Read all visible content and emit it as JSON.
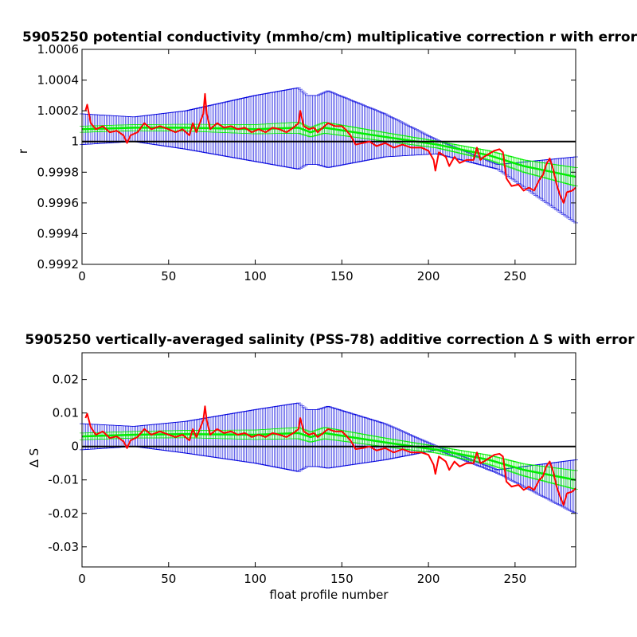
{
  "chart_data": [
    {
      "type": "line",
      "title": "5905250 potential conductivity (mmho/cm) multiplicative correction r with error",
      "xlabel": "",
      "ylabel": "r",
      "xlim": [
        0,
        285
      ],
      "ylim": [
        0.9992,
        1.0006
      ],
      "xticks": [
        "0",
        "50",
        "100",
        "150",
        "200",
        "250"
      ],
      "yticks": [
        "0.9992",
        "0.9994",
        "0.9996",
        "0.9998",
        "1",
        "1.0002",
        "1.0004",
        "1.0006"
      ],
      "ytick_values": [
        0.9992,
        0.9994,
        0.9996,
        0.9998,
        1.0,
        1.0002,
        1.0004,
        1.0006
      ],
      "reference_line": 1.0,
      "series": [
        {
          "role": "fit",
          "color": "#00ee00",
          "x": [
            0,
            30,
            60,
            100,
            125,
            132,
            140,
            175,
            205,
            235,
            255,
            285
          ],
          "y": [
            1.00008,
            1.00009,
            1.00009,
            1.00008,
            1.00009,
            1.00006,
            1.00009,
            1.00003,
            0.99998,
            0.99991,
            0.99984,
            0.99977
          ]
        },
        {
          "role": "fit-error",
          "color": "#00ee00",
          "x": [
            0,
            30,
            60,
            100,
            125,
            132,
            140,
            175,
            205,
            235,
            255,
            285
          ],
          "err": [
            2e-05,
            2e-05,
            2.2e-05,
            3e-05,
            3.6e-05,
            3e-05,
            3.6e-05,
            2.8e-05,
            2.2e-05,
            3e-05,
            4e-05,
            6e-05
          ]
        },
        {
          "role": "error",
          "color": "#0000dd",
          "x": [
            0,
            30,
            60,
            100,
            125,
            130,
            136,
            142,
            175,
            205,
            240,
            285
          ],
          "upper": [
            1.00018,
            1.00016,
            1.0002,
            1.0003,
            1.00035,
            1.0003,
            1.0003,
            1.00033,
            1.00018,
            1.00001,
            0.99985,
            0.9999
          ],
          "lower": [
            0.99998,
            1.0,
            0.99995,
            0.99987,
            0.99982,
            0.99985,
            0.99985,
            0.99983,
            0.9999,
            0.99992,
            0.99982,
            0.99947
          ]
        },
        {
          "role": "data",
          "color": "#ff0000",
          "x": [
            2,
            3,
            5,
            8,
            12,
            16,
            20,
            24,
            26,
            28,
            32,
            36,
            40,
            45,
            50,
            54,
            58,
            62,
            64,
            66,
            68,
            70,
            71,
            72,
            74,
            78,
            82,
            86,
            90,
            94,
            98,
            102,
            106,
            110,
            114,
            118,
            122,
            125,
            126,
            128,
            131,
            134,
            136,
            138,
            142,
            146,
            150,
            152,
            155,
            158,
            162,
            166,
            170,
            175,
            180,
            185,
            190,
            196,
            200,
            203,
            204,
            206,
            210,
            212,
            215,
            218,
            222,
            226,
            228,
            230,
            232,
            235,
            238,
            241,
            243,
            245,
            248,
            252,
            255,
            258,
            261,
            264,
            266,
            268,
            270,
            272,
            274,
            276,
            278,
            280,
            283,
            285
          ],
          "y": [
            1.0002,
            1.00024,
            1.00012,
            1.00008,
            1.0001,
            1.00006,
            1.00007,
            1.00004,
            0.99999,
            1.00004,
            1.00006,
            1.00012,
            1.00008,
            1.0001,
            1.00008,
            1.00006,
            1.00008,
            1.00004,
            1.00012,
            1.00006,
            1.00012,
            1.00018,
            1.00031,
            1.00018,
            1.00008,
            1.00012,
            1.00009,
            1.0001,
            1.00008,
            1.00009,
            1.00006,
            1.00008,
            1.00006,
            1.00009,
            1.00008,
            1.00006,
            1.00009,
            1.00012,
            1.0002,
            1.0001,
            1.00008,
            1.00009,
            1.00006,
            1.00008,
            1.00012,
            1.0001,
            1.0001,
            1.00008,
            1.00004,
            0.99998,
            0.99999,
            1.0,
            0.99997,
            0.99999,
            0.99996,
            0.99998,
            0.99996,
            0.99996,
            0.99994,
            0.99988,
            0.99981,
            0.99993,
            0.9999,
            0.99984,
            0.9999,
            0.99986,
            0.99988,
            0.99988,
            0.99996,
            0.99988,
            0.9999,
            0.99992,
            0.99994,
            0.99995,
            0.99993,
            0.99976,
            0.99971,
            0.99972,
            0.99968,
            0.9997,
            0.99968,
            0.99975,
            0.99978,
            0.99985,
            0.99989,
            0.99982,
            0.99972,
            0.99965,
            0.9996,
            0.99967,
            0.99968,
            0.9997
          ]
        }
      ]
    },
    {
      "type": "line",
      "title": "5905250 vertically-averaged salinity (PSS-78) additive correction ∆ S with error",
      "xlabel": "float profile number",
      "ylabel": "∆ S",
      "xlim": [
        0,
        285
      ],
      "ylim": [
        -0.036,
        0.028
      ],
      "xticks": [
        "0",
        "50",
        "100",
        "150",
        "200",
        "250"
      ],
      "yticks": [
        "-0.03",
        "-0.02",
        "-0.01",
        "0",
        "0.01",
        "0.02"
      ],
      "ytick_values": [
        -0.03,
        -0.02,
        -0.01,
        0.0,
        0.01,
        0.02
      ],
      "reference_line": 0.0,
      "series": [
        {
          "role": "fit",
          "color": "#00ee00",
          "x": [
            0,
            30,
            60,
            100,
            125,
            132,
            140,
            175,
            205,
            235,
            255,
            285
          ],
          "y": [
            0.003,
            0.0035,
            0.0037,
            0.0035,
            0.004,
            0.0028,
            0.004,
            0.0012,
            -0.001,
            -0.004,
            -0.007,
            -0.01
          ]
        },
        {
          "role": "fit-error",
          "color": "#00ee00",
          "x": [
            0,
            30,
            60,
            100,
            125,
            132,
            140,
            175,
            205,
            235,
            255,
            285
          ],
          "err": [
            0.001,
            0.001,
            0.0011,
            0.0014,
            0.0017,
            0.0015,
            0.0017,
            0.0013,
            0.001,
            0.0014,
            0.0018,
            0.0028
          ]
        },
        {
          "role": "error",
          "color": "#0000dd",
          "x": [
            0,
            30,
            60,
            100,
            125,
            130,
            136,
            142,
            175,
            205,
            240,
            285
          ],
          "upper": [
            0.0068,
            0.006,
            0.0075,
            0.011,
            0.013,
            0.011,
            0.011,
            0.012,
            0.0068,
            0.0,
            -0.007,
            -0.004
          ],
          "lower": [
            -0.001,
            0.0,
            -0.002,
            -0.005,
            -0.0075,
            -0.006,
            -0.006,
            -0.0065,
            -0.004,
            -0.001,
            -0.008,
            -0.02
          ]
        },
        {
          "role": "data",
          "color": "#ff0000",
          "x": [
            2,
            3,
            5,
            8,
            12,
            16,
            20,
            24,
            26,
            28,
            32,
            36,
            40,
            45,
            50,
            54,
            58,
            62,
            64,
            66,
            68,
            70,
            71,
            72,
            74,
            78,
            82,
            86,
            90,
            94,
            98,
            102,
            106,
            110,
            114,
            118,
            122,
            125,
            126,
            128,
            131,
            134,
            136,
            138,
            142,
            146,
            150,
            152,
            155,
            158,
            162,
            166,
            170,
            175,
            180,
            185,
            190,
            196,
            200,
            203,
            204,
            206,
            210,
            212,
            215,
            218,
            222,
            226,
            228,
            230,
            232,
            235,
            238,
            241,
            243,
            245,
            248,
            252,
            255,
            258,
            261,
            264,
            266,
            268,
            270,
            272,
            274,
            276,
            278,
            280,
            283,
            285
          ],
          "y": [
            0.0085,
            0.0098,
            0.0058,
            0.0035,
            0.0045,
            0.0025,
            0.003,
            0.0015,
            -0.0005,
            0.0018,
            0.0028,
            0.0052,
            0.0035,
            0.0045,
            0.0035,
            0.0028,
            0.0035,
            0.0018,
            0.0052,
            0.0028,
            0.0052,
            0.0078,
            0.012,
            0.0078,
            0.0035,
            0.0052,
            0.004,
            0.0045,
            0.0035,
            0.004,
            0.0028,
            0.0035,
            0.0028,
            0.004,
            0.0035,
            0.0028,
            0.004,
            0.0052,
            0.0085,
            0.0045,
            0.0035,
            0.004,
            0.0028,
            0.0035,
            0.0052,
            0.0045,
            0.0045,
            0.0035,
            0.0018,
            -0.0008,
            -0.0005,
            0.0,
            -0.0012,
            -0.0005,
            -0.0018,
            -0.0008,
            -0.0018,
            -0.0018,
            -0.0025,
            -0.0055,
            -0.0082,
            -0.003,
            -0.0045,
            -0.007,
            -0.0045,
            -0.006,
            -0.005,
            -0.005,
            -0.0018,
            -0.005,
            -0.0045,
            -0.0035,
            -0.0025,
            -0.0022,
            -0.003,
            -0.0105,
            -0.012,
            -0.0115,
            -0.013,
            -0.012,
            -0.013,
            -0.01,
            -0.009,
            -0.006,
            -0.0045,
            -0.0075,
            -0.012,
            -0.015,
            -0.0175,
            -0.014,
            -0.0135,
            -0.0125
          ]
        }
      ]
    }
  ]
}
